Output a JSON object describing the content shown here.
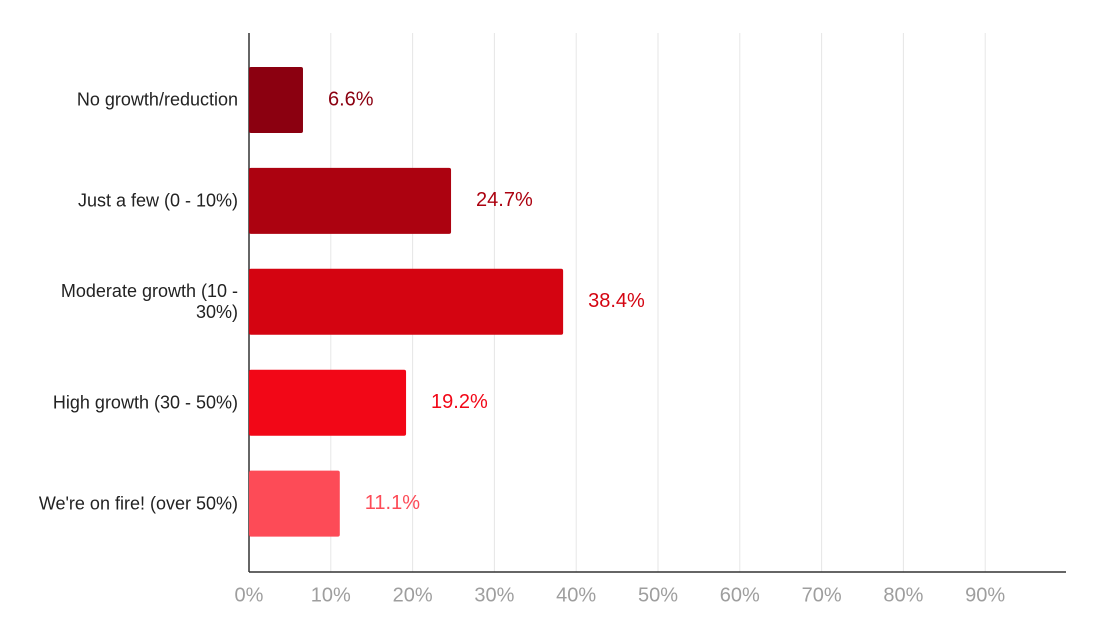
{
  "chart_data": {
    "type": "hbar",
    "categories": [
      "No growth/reduction",
      "Just a few (0 - 10%)",
      "Moderate growth (10 - 30%)",
      "High growth (30 - 50%)",
      "We're on fire! (over 50%)"
    ],
    "values": [
      6.6,
      24.7,
      38.4,
      19.2,
      11.1
    ],
    "value_labels": [
      "6.6%",
      "24.7%",
      "38.4%",
      "19.2%",
      "11.1%"
    ],
    "colors": [
      "#8b0010",
      "#ac0210",
      "#d40411",
      "#f20717",
      "#fd4b57"
    ],
    "xlim": [
      0,
      100
    ],
    "xticks": [
      {
        "value": 0,
        "label": "0%"
      },
      {
        "value": 10,
        "label": "10%"
      },
      {
        "value": 20,
        "label": "20%"
      },
      {
        "value": 30,
        "label": "30%"
      },
      {
        "value": 40,
        "label": "40%"
      },
      {
        "value": 50,
        "label": "50%"
      },
      {
        "value": 60,
        "label": "60%"
      },
      {
        "value": 70,
        "label": "70%"
      },
      {
        "value": 80,
        "label": "80%"
      },
      {
        "value": 90,
        "label": "90%"
      }
    ],
    "grid": true
  }
}
